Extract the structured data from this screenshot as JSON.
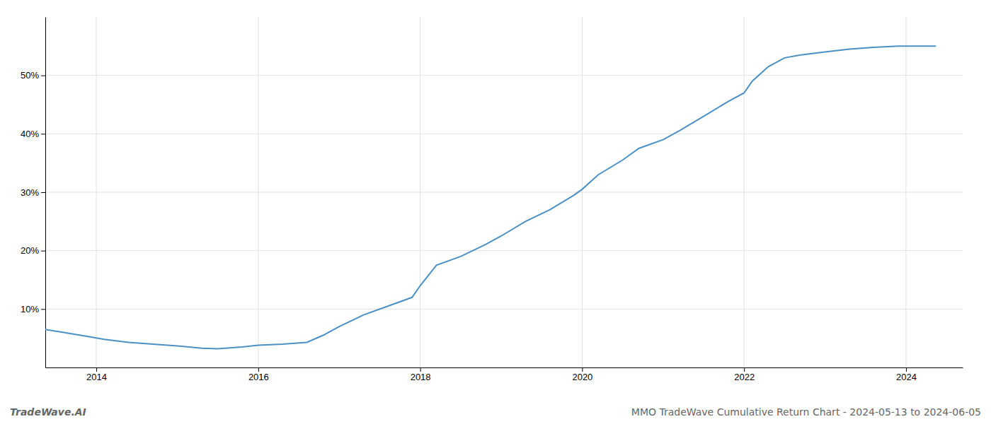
{
  "chart_data": {
    "type": "line",
    "title": "MMO TradeWave Cumulative Return Chart - 2024-05-13 to 2024-06-05",
    "annotations": [
      "TradeWave.AI"
    ],
    "x": [
      2013.37,
      2013.6,
      2013.9,
      2014.1,
      2014.4,
      2014.7,
      2015.0,
      2015.3,
      2015.5,
      2015.8,
      2016.0,
      2016.3,
      2016.6,
      2016.8,
      2017.0,
      2017.3,
      2017.6,
      2017.9,
      2018.0,
      2018.2,
      2018.5,
      2018.8,
      2019.0,
      2019.3,
      2019.6,
      2019.9,
      2020.0,
      2020.2,
      2020.5,
      2020.7,
      2021.0,
      2021.2,
      2021.5,
      2021.8,
      2022.0,
      2022.1,
      2022.3,
      2022.5,
      2022.7,
      2023.0,
      2023.3,
      2023.6,
      2023.9,
      2024.0,
      2024.37
    ],
    "values": [
      6.5,
      6.0,
      5.3,
      4.8,
      4.3,
      4.0,
      3.7,
      3.3,
      3.2,
      3.5,
      3.8,
      4.0,
      4.3,
      5.5,
      7.0,
      9.0,
      10.5,
      12.0,
      14.0,
      17.5,
      19.0,
      21.0,
      22.5,
      25.0,
      27.0,
      29.5,
      30.5,
      33.0,
      35.5,
      37.5,
      39.0,
      40.5,
      43.0,
      45.5,
      47.0,
      49.0,
      51.5,
      53.0,
      53.5,
      54.0,
      54.5,
      54.8,
      55.0,
      55.0,
      55.0
    ],
    "color": "#4a90c4",
    "xlim": [
      2013.37,
      2024.7
    ],
    "ylim": [
      0,
      60
    ],
    "xticks": [
      2014,
      2016,
      2018,
      2020,
      2022,
      2024
    ],
    "yticks": [
      {
        "value": 10,
        "label": "10%"
      },
      {
        "value": 20,
        "label": "20%"
      },
      {
        "value": 30,
        "label": "30%"
      },
      {
        "value": 40,
        "label": "40%"
      },
      {
        "value": 50,
        "label": "50%"
      }
    ],
    "grid": true
  }
}
